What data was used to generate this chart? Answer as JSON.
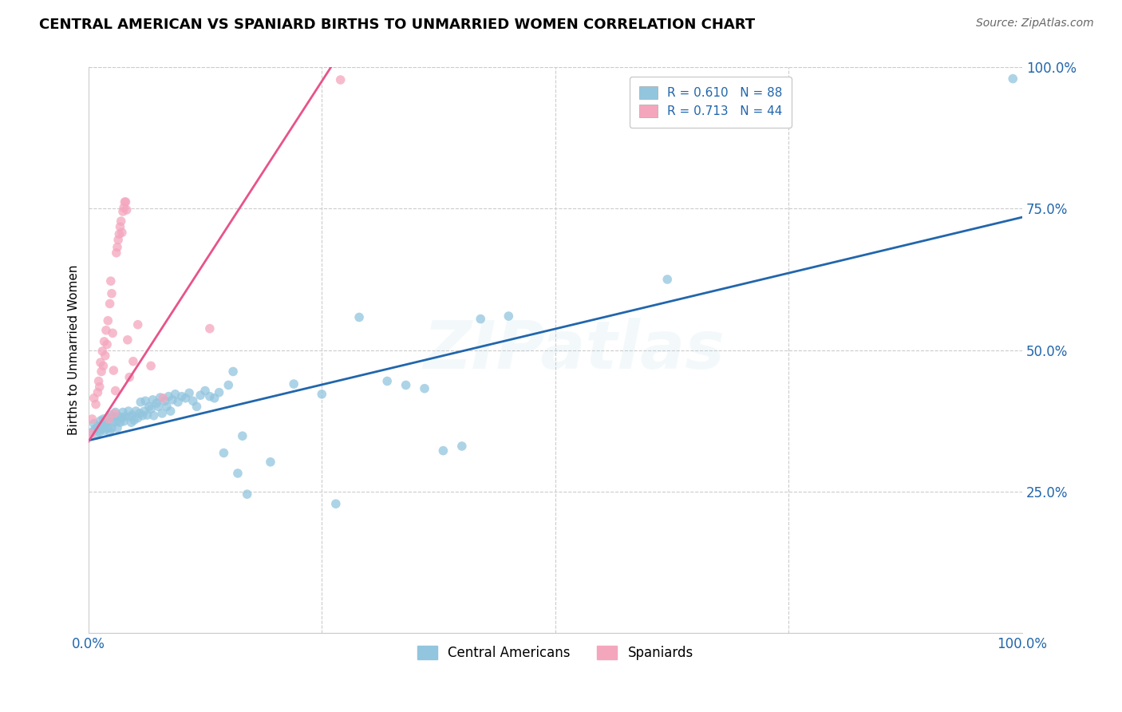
{
  "title": "CENTRAL AMERICAN VS SPANIARD BIRTHS TO UNMARRIED WOMEN CORRELATION CHART",
  "source": "Source: ZipAtlas.com",
  "ylabel": "Births to Unmarried Women",
  "watermark": "ZIPatlas",
  "xlim": [
    0,
    1
  ],
  "ylim": [
    0,
    1
  ],
  "ytick_positions": [
    0.25,
    0.5,
    0.75,
    1.0
  ],
  "ytick_labels": [
    "25.0%",
    "50.0%",
    "75.0%",
    "100.0%"
  ],
  "xtick_positions": [
    0.0,
    1.0
  ],
  "xtick_labels": [
    "0.0%",
    "100.0%"
  ],
  "legend_bottom_label1": "Central Americans",
  "legend_bottom_label2": "Spaniards",
  "blue_color": "#92c5de",
  "pink_color": "#f4a6bd",
  "blue_line_color": "#2166ac",
  "pink_line_color": "#e8538a",
  "blue_points": [
    [
      0.004,
      0.355
    ],
    [
      0.006,
      0.37
    ],
    [
      0.007,
      0.36
    ],
    [
      0.009,
      0.35
    ],
    [
      0.01,
      0.365
    ],
    [
      0.012,
      0.355
    ],
    [
      0.013,
      0.375
    ],
    [
      0.014,
      0.36
    ],
    [
      0.015,
      0.368
    ],
    [
      0.016,
      0.378
    ],
    [
      0.017,
      0.358
    ],
    [
      0.018,
      0.368
    ],
    [
      0.02,
      0.372
    ],
    [
      0.021,
      0.362
    ],
    [
      0.022,
      0.38
    ],
    [
      0.023,
      0.355
    ],
    [
      0.024,
      0.385
    ],
    [
      0.025,
      0.362
    ],
    [
      0.027,
      0.372
    ],
    [
      0.028,
      0.382
    ],
    [
      0.029,
      0.39
    ],
    [
      0.03,
      0.374
    ],
    [
      0.031,
      0.362
    ],
    [
      0.033,
      0.382
    ],
    [
      0.034,
      0.372
    ],
    [
      0.036,
      0.38
    ],
    [
      0.037,
      0.39
    ],
    [
      0.038,
      0.374
    ],
    [
      0.039,
      0.382
    ],
    [
      0.043,
      0.392
    ],
    [
      0.045,
      0.382
    ],
    [
      0.046,
      0.372
    ],
    [
      0.047,
      0.385
    ],
    [
      0.049,
      0.376
    ],
    [
      0.051,
      0.392
    ],
    [
      0.053,
      0.38
    ],
    [
      0.055,
      0.388
    ],
    [
      0.056,
      0.408
    ],
    [
      0.058,
      0.384
    ],
    [
      0.06,
      0.392
    ],
    [
      0.061,
      0.41
    ],
    [
      0.063,
      0.385
    ],
    [
      0.065,
      0.4
    ],
    [
      0.067,
      0.396
    ],
    [
      0.069,
      0.412
    ],
    [
      0.07,
      0.384
    ],
    [
      0.073,
      0.406
    ],
    [
      0.075,
      0.4
    ],
    [
      0.077,
      0.416
    ],
    [
      0.079,
      0.388
    ],
    [
      0.082,
      0.41
    ],
    [
      0.084,
      0.4
    ],
    [
      0.086,
      0.418
    ],
    [
      0.088,
      0.392
    ],
    [
      0.09,
      0.412
    ],
    [
      0.093,
      0.422
    ],
    [
      0.096,
      0.408
    ],
    [
      0.1,
      0.418
    ],
    [
      0.104,
      0.415
    ],
    [
      0.108,
      0.424
    ],
    [
      0.112,
      0.41
    ],
    [
      0.116,
      0.4
    ],
    [
      0.12,
      0.42
    ],
    [
      0.125,
      0.428
    ],
    [
      0.13,
      0.418
    ],
    [
      0.135,
      0.415
    ],
    [
      0.14,
      0.425
    ],
    [
      0.145,
      0.318
    ],
    [
      0.15,
      0.438
    ],
    [
      0.155,
      0.462
    ],
    [
      0.16,
      0.282
    ],
    [
      0.165,
      0.348
    ],
    [
      0.17,
      0.245
    ],
    [
      0.195,
      0.302
    ],
    [
      0.22,
      0.44
    ],
    [
      0.25,
      0.422
    ],
    [
      0.265,
      0.228
    ],
    [
      0.29,
      0.558
    ],
    [
      0.32,
      0.445
    ],
    [
      0.34,
      0.438
    ],
    [
      0.36,
      0.432
    ],
    [
      0.38,
      0.322
    ],
    [
      0.4,
      0.33
    ],
    [
      0.42,
      0.555
    ],
    [
      0.45,
      0.56
    ],
    [
      0.62,
      0.625
    ],
    [
      0.99,
      0.98
    ]
  ],
  "pink_points": [
    [
      0.003,
      0.352
    ],
    [
      0.004,
      0.378
    ],
    [
      0.006,
      0.415
    ],
    [
      0.008,
      0.404
    ],
    [
      0.01,
      0.425
    ],
    [
      0.011,
      0.445
    ],
    [
      0.012,
      0.435
    ],
    [
      0.013,
      0.478
    ],
    [
      0.014,
      0.462
    ],
    [
      0.015,
      0.498
    ],
    [
      0.016,
      0.472
    ],
    [
      0.017,
      0.515
    ],
    [
      0.018,
      0.49
    ],
    [
      0.019,
      0.535
    ],
    [
      0.02,
      0.51
    ],
    [
      0.021,
      0.552
    ],
    [
      0.022,
      0.378
    ],
    [
      0.023,
      0.582
    ],
    [
      0.024,
      0.622
    ],
    [
      0.025,
      0.6
    ],
    [
      0.026,
      0.53
    ],
    [
      0.027,
      0.464
    ],
    [
      0.028,
      0.388
    ],
    [
      0.029,
      0.428
    ],
    [
      0.03,
      0.672
    ],
    [
      0.031,
      0.682
    ],
    [
      0.032,
      0.695
    ],
    [
      0.033,
      0.705
    ],
    [
      0.034,
      0.718
    ],
    [
      0.035,
      0.728
    ],
    [
      0.036,
      0.708
    ],
    [
      0.037,
      0.745
    ],
    [
      0.038,
      0.752
    ],
    [
      0.039,
      0.762
    ],
    [
      0.04,
      0.762
    ],
    [
      0.041,
      0.748
    ],
    [
      0.042,
      0.518
    ],
    [
      0.044,
      0.452
    ],
    [
      0.048,
      0.48
    ],
    [
      0.053,
      0.545
    ],
    [
      0.067,
      0.472
    ],
    [
      0.08,
      0.415
    ],
    [
      0.13,
      0.538
    ],
    [
      0.27,
      0.978
    ]
  ],
  "blue_intercept": 0.34,
  "blue_slope": 0.395,
  "pink_intercept": 0.338,
  "pink_slope": 2.55,
  "pink_line_xmax": 0.26,
  "title_fontsize": 13,
  "source_fontsize": 10,
  "label_fontsize": 11,
  "tick_fontsize": 12,
  "watermark_fontsize": 60,
  "watermark_alpha": 0.1,
  "background_color": "#ffffff",
  "grid_color": "#cccccc"
}
